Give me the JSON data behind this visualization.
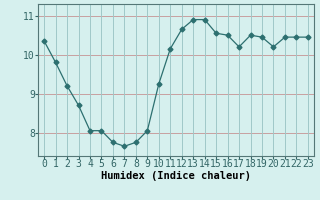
{
  "x": [
    0,
    1,
    2,
    3,
    4,
    5,
    6,
    7,
    8,
    9,
    10,
    11,
    12,
    13,
    14,
    15,
    16,
    17,
    18,
    19,
    20,
    21,
    22,
    23
  ],
  "y": [
    10.35,
    9.8,
    9.2,
    8.7,
    8.05,
    8.05,
    7.75,
    7.65,
    7.75,
    8.05,
    9.25,
    10.15,
    10.65,
    10.9,
    10.9,
    10.55,
    10.5,
    10.2,
    10.5,
    10.45,
    10.2,
    10.45,
    10.45,
    10.45
  ],
  "line_color": "#2d7070",
  "marker": "D",
  "marker_size": 2.5,
  "bg_color": "#d6f0ee",
  "grid_color_h": "#c8a0a0",
  "grid_color_v": "#a0c8c8",
  "xlabel": "Humidex (Indice chaleur)",
  "ylim": [
    7.4,
    11.3
  ],
  "yticks": [
    8,
    9,
    10,
    11
  ],
  "xticks": [
    0,
    1,
    2,
    3,
    4,
    5,
    6,
    7,
    8,
    9,
    10,
    11,
    12,
    13,
    14,
    15,
    16,
    17,
    18,
    19,
    20,
    21,
    22,
    23
  ],
  "xlim": [
    -0.5,
    23.5
  ],
  "xlabel_fontsize": 7.5,
  "tick_fontsize": 7
}
